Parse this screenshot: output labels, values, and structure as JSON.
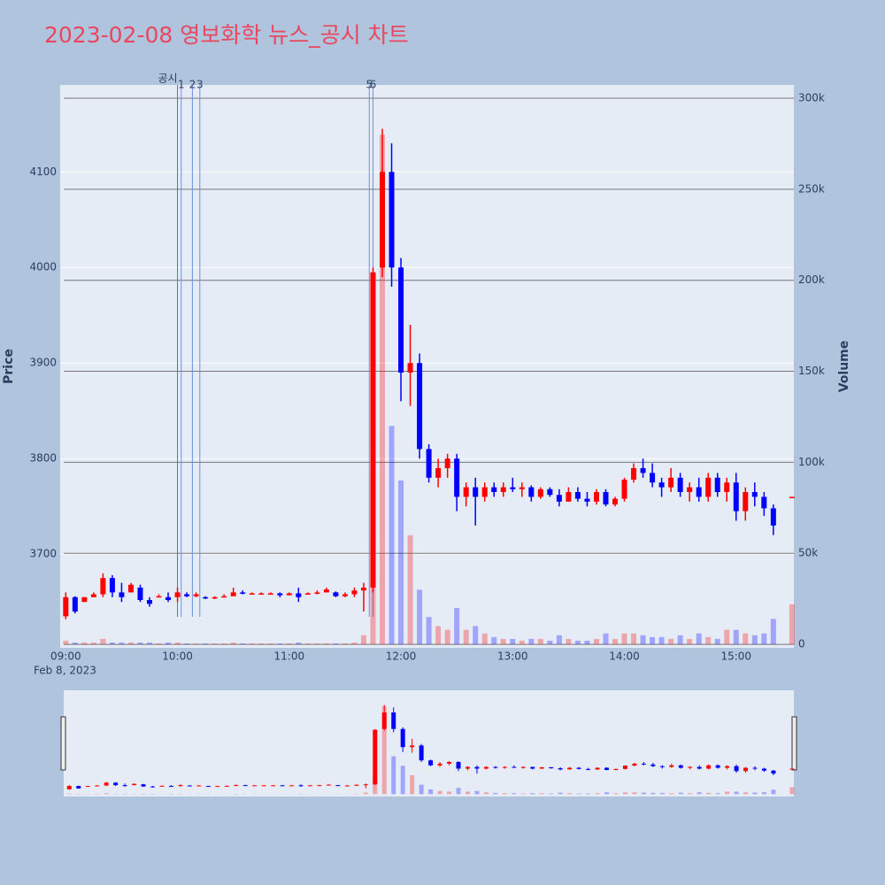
{
  "chart_data": {
    "type": "candlestick",
    "title": "2023-02-08 영보화학 뉴스_공시 차트",
    "y_title": "Price",
    "y2_title": "Volume",
    "x_date_label": "Feb 8, 2023",
    "increasing_color": "#ff0000",
    "decreasing_color": "#0000ff",
    "x": [
      "2023-02-08 09:00",
      "2023-02-08 09:05",
      "2023-02-08 09:10",
      "2023-02-08 09:15",
      "2023-02-08 09:20",
      "2023-02-08 09:25",
      "2023-02-08 09:30",
      "2023-02-08 09:35",
      "2023-02-08 09:40",
      "2023-02-08 09:45",
      "2023-02-08 09:50",
      "2023-02-08 09:55",
      "2023-02-08 10:00",
      "2023-02-08 10:05",
      "2023-02-08 10:10",
      "2023-02-08 10:15",
      "2023-02-08 10:20",
      "2023-02-08 10:25",
      "2023-02-08 10:30",
      "2023-02-08 10:35",
      "2023-02-08 10:40",
      "2023-02-08 10:45",
      "2023-02-08 10:50",
      "2023-02-08 10:55",
      "2023-02-08 11:00",
      "2023-02-08 11:05",
      "2023-02-08 11:10",
      "2023-02-08 11:15",
      "2023-02-08 11:20",
      "2023-02-08 11:25",
      "2023-02-08 11:30",
      "2023-02-08 11:35",
      "2023-02-08 11:40",
      "2023-02-08 11:45",
      "2023-02-08 11:50",
      "2023-02-08 11:55",
      "2023-02-08 12:00",
      "2023-02-08 12:05",
      "2023-02-08 12:10",
      "2023-02-08 12:15",
      "2023-02-08 12:20",
      "2023-02-08 12:25",
      "2023-02-08 12:30",
      "2023-02-08 12:35",
      "2023-02-08 12:40",
      "2023-02-08 12:45",
      "2023-02-08 12:50",
      "2023-02-08 12:55",
      "2023-02-08 13:00",
      "2023-02-08 13:05",
      "2023-02-08 13:10",
      "2023-02-08 13:15",
      "2023-02-08 13:20",
      "2023-02-08 13:25",
      "2023-02-08 13:30",
      "2023-02-08 13:35",
      "2023-02-08 13:40",
      "2023-02-08 13:45",
      "2023-02-08 13:50",
      "2023-02-08 13:55",
      "2023-02-08 14:00",
      "2023-02-08 14:05",
      "2023-02-08 14:10",
      "2023-02-08 14:15",
      "2023-02-08 14:20",
      "2023-02-08 14:25",
      "2023-02-08 14:30",
      "2023-02-08 14:35",
      "2023-02-08 14:40",
      "2023-02-08 14:45",
      "2023-02-08 14:50",
      "2023-02-08 14:55",
      "2023-02-08 15:00",
      "2023-02-08 15:05",
      "2023-02-08 15:10",
      "2023-02-08 15:15",
      "2023-02-08 15:20",
      "2023-02-08 15:30"
    ],
    "open": [
      3635,
      3655,
      3650,
      3655,
      3658,
      3675,
      3660,
      3660,
      3665,
      3652,
      3655,
      3655,
      3655,
      3658,
      3656,
      3655,
      3654,
      3655,
      3656,
      3660,
      3659,
      3659,
      3659,
      3659,
      3657,
      3659,
      3658,
      3659,
      3660,
      3660,
      3656,
      3658,
      3662,
      3665,
      4000,
      4100,
      4000,
      3890,
      3900,
      3810,
      3780,
      3790,
      3800,
      3760,
      3770,
      3760,
      3770,
      3765,
      3770,
      3768,
      3770,
      3760,
      3768,
      3762,
      3755,
      3765,
      3758,
      3755,
      3765,
      3752,
      3758,
      3778,
      3790,
      3785,
      3775,
      3770,
      3780,
      3765,
      3770,
      3760,
      3780,
      3765,
      3775,
      3745,
      3765,
      3760,
      3748,
      3760
    ],
    "high": [
      3660,
      3656,
      3655,
      3660,
      3680,
      3678,
      3670,
      3670,
      3668,
      3655,
      3658,
      3660,
      3665,
      3660,
      3660,
      3656,
      3656,
      3658,
      3665,
      3662,
      3660,
      3660,
      3660,
      3660,
      3660,
      3665,
      3660,
      3662,
      3665,
      3661,
      3660,
      3665,
      3670,
      4000,
      4145,
      4130,
      4010,
      3940,
      3910,
      3815,
      3800,
      3805,
      3805,
      3775,
      3780,
      3775,
      3775,
      3775,
      3780,
      3775,
      3772,
      3770,
      3770,
      3768,
      3770,
      3770,
      3765,
      3768,
      3768,
      3760,
      3780,
      3795,
      3800,
      3795,
      3780,
      3790,
      3785,
      3775,
      3780,
      3785,
      3785,
      3780,
      3785,
      3770,
      3775,
      3765,
      3752,
      3760
    ],
    "low": [
      3632,
      3638,
      3650,
      3655,
      3655,
      3655,
      3650,
      3660,
      3650,
      3645,
      3655,
      3650,
      3650,
      3655,
      3655,
      3653,
      3653,
      3655,
      3656,
      3658,
      3658,
      3658,
      3658,
      3655,
      3657,
      3650,
      3658,
      3658,
      3660,
      3655,
      3655,
      3655,
      3640,
      3660,
      3990,
      3980,
      3860,
      3855,
      3800,
      3775,
      3770,
      3780,
      3745,
      3750,
      3730,
      3755,
      3760,
      3760,
      3765,
      3760,
      3755,
      3758,
      3760,
      3750,
      3755,
      3755,
      3750,
      3752,
      3750,
      3750,
      3755,
      3775,
      3780,
      3770,
      3760,
      3765,
      3760,
      3755,
      3755,
      3755,
      3760,
      3755,
      3735,
      3735,
      3750,
      3740,
      3720,
      3760
    ],
    "close": [
      3655,
      3640,
      3655,
      3658,
      3675,
      3660,
      3655,
      3668,
      3652,
      3648,
      3656,
      3652,
      3660,
      3656,
      3658,
      3654,
      3655,
      3656,
      3660,
      3659,
      3659,
      3659,
      3659,
      3657,
      3659,
      3655,
      3659,
      3660,
      3663,
      3656,
      3658,
      3662,
      3665,
      3995,
      4100,
      4000,
      3890,
      3900,
      3810,
      3780,
      3790,
      3800,
      3760,
      3770,
      3760,
      3770,
      3765,
      3770,
      3768,
      3770,
      3760,
      3768,
      3762,
      3755,
      3765,
      3758,
      3755,
      3765,
      3752,
      3758,
      3778,
      3790,
      3785,
      3775,
      3770,
      3780,
      3765,
      3770,
      3760,
      3780,
      3765,
      3775,
      3745,
      3765,
      3760,
      3748,
      3730,
      3760
    ],
    "volume": [
      2000,
      1000,
      1000,
      1000,
      3000,
      1000,
      1000,
      1000,
      1000,
      1000,
      500,
      1000,
      1000,
      500,
      500,
      500,
      500,
      500,
      1000,
      500,
      500,
      500,
      500,
      500,
      500,
      1000,
      500,
      500,
      500,
      500,
      500,
      1000,
      5000,
      60000,
      280000,
      120000,
      90000,
      60000,
      30000,
      15000,
      10000,
      8000,
      20000,
      8000,
      10000,
      6000,
      4000,
      3000,
      3000,
      2000,
      3000,
      3000,
      2000,
      5000,
      3000,
      2000,
      2000,
      3000,
      6000,
      3000,
      6000,
      6000,
      5000,
      4000,
      4000,
      3000,
      5000,
      3000,
      6000,
      4000,
      3000,
      8000,
      8000,
      6000,
      5000,
      6000,
      14000,
      22000
    ],
    "xlim": [
      "2023-02-08 08:57",
      "2023-02-08 15:31"
    ],
    "xticks": [
      {
        "value": "2023-02-08 09:00",
        "label": "09:00"
      },
      {
        "value": "2023-02-08 10:00",
        "label": "10:00"
      },
      {
        "value": "2023-02-08 11:00",
        "label": "11:00"
      },
      {
        "value": "2023-02-08 12:00",
        "label": "12:00"
      },
      {
        "value": "2023-02-08 13:00",
        "label": "13:00"
      },
      {
        "value": "2023-02-08 14:00",
        "label": "14:00"
      },
      {
        "value": "2023-02-08 15:00",
        "label": "15:00"
      }
    ],
    "ylim": [
      3602,
      4191
    ],
    "yticks": [
      3700,
      3800,
      3900,
      4000,
      4100
    ],
    "y2lim": [
      -1900,
      307300
    ],
    "y2ticks": [
      0,
      {
        "value": 50000,
        "label": "50k"
      },
      {
        "value": 100000,
        "label": "100k"
      },
      {
        "value": 150000,
        "label": "150k"
      },
      {
        "value": 200000,
        "label": "200k"
      },
      {
        "value": 250000,
        "label": "250k"
      },
      {
        "value": 300000,
        "label": "300k"
      }
    ],
    "annotations": [
      {
        "x": "2023-02-08 10:00",
        "label": "공시",
        "color": "#2ca02c"
      },
      {
        "x": "2023-02-08 10:02",
        "label": "1",
        "color": "#6f8fe0"
      },
      {
        "x": "2023-02-08 10:08",
        "label": "2",
        "color": "#6f8fe0"
      },
      {
        "x": "2023-02-08 10:12",
        "label": "3",
        "color": "#6f8fe0"
      },
      {
        "x": "2023-02-08 11:43",
        "label": "5",
        "color": "#6f8fe0"
      },
      {
        "x": "2023-02-08 11:45",
        "label": "6",
        "color": "#6f8fe0"
      }
    ]
  }
}
